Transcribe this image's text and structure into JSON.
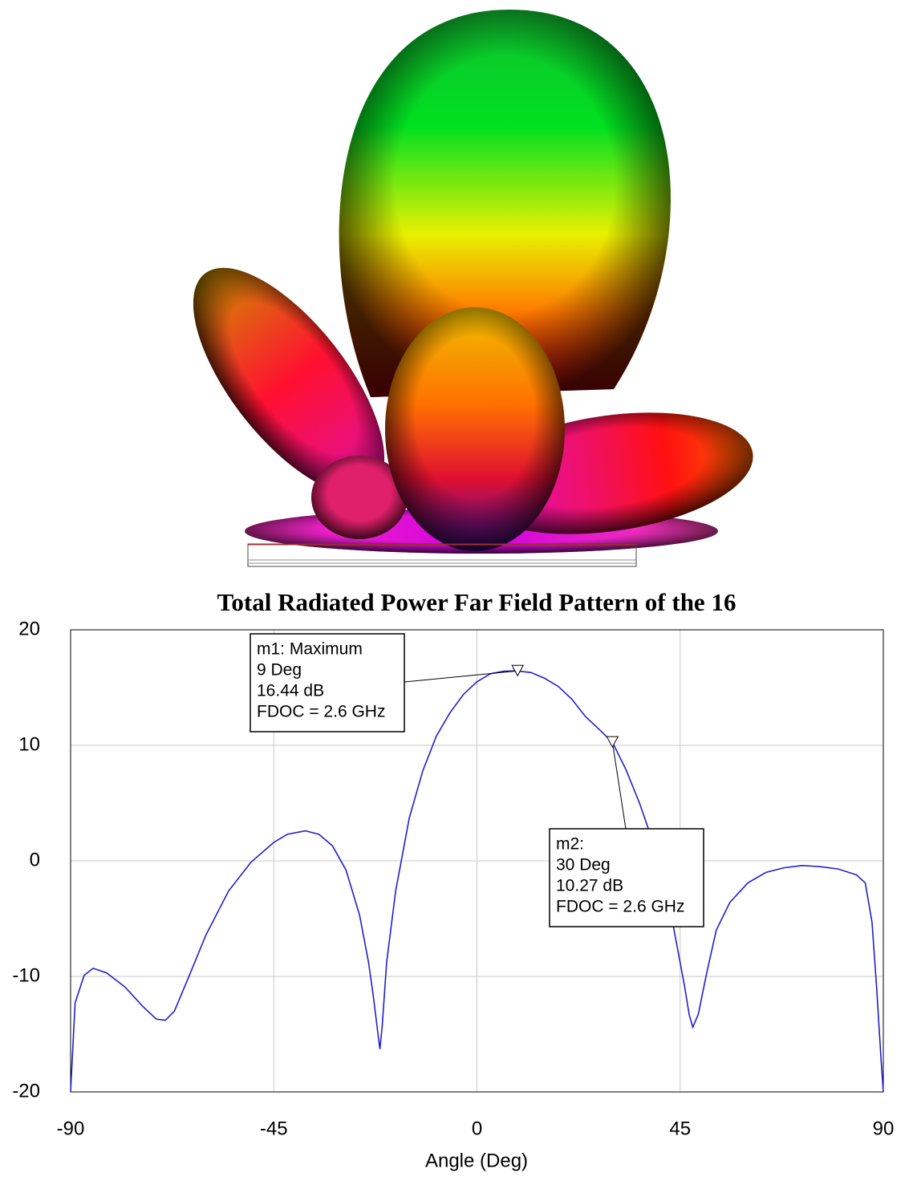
{
  "chart_data": {
    "type": "line",
    "title": "Total Radiated Power Far Field Pattern of the 16",
    "xlabel": "Angle (Deg)",
    "xlim": [
      -90,
      90
    ],
    "ylim": [
      -20,
      20
    ],
    "xticks": [
      -90,
      -45,
      0,
      45,
      90
    ],
    "yticks": [
      -20,
      -10,
      0,
      10,
      20
    ],
    "grid": true,
    "series": [
      {
        "color": "#1f1fd0",
        "x": [
          -90,
          -89,
          -87,
          -85,
          -82,
          -78,
          -74,
          -71,
          -69,
          -67,
          -64,
          -60,
          -55,
          -50,
          -45,
          -42,
          -38,
          -35,
          -32,
          -29,
          -26,
          -24,
          -23,
          -21.5,
          -21,
          -20,
          -18,
          -15,
          -12,
          -9,
          -6,
          -3,
          0,
          3,
          6,
          9,
          12,
          15,
          18,
          21,
          24,
          27,
          30,
          33,
          36,
          39,
          42,
          44,
          46,
          47,
          47.8,
          49,
          51,
          53,
          56,
          60,
          64,
          68,
          72,
          76,
          80,
          84,
          86,
          87.5,
          88.5,
          89.5,
          90
        ],
        "values": [
          -20,
          -12.3,
          -9.9,
          -9.3,
          -9.7,
          -10.9,
          -12.6,
          -13.7,
          -13.8,
          -13.0,
          -10.2,
          -6.4,
          -2.6,
          -0.1,
          1.6,
          2.3,
          2.6,
          2.3,
          1.3,
          -0.8,
          -4.7,
          -8.8,
          -11.6,
          -16.3,
          -14.4,
          -8.8,
          -2.6,
          3.7,
          7.8,
          10.8,
          12.8,
          14.4,
          15.5,
          16.2,
          16.42,
          16.44,
          16.3,
          15.8,
          15.1,
          14.0,
          12.5,
          11.4,
          10.27,
          7.9,
          5.0,
          1.6,
          -2.6,
          -6.7,
          -10.9,
          -13.3,
          -14.4,
          -13.3,
          -9.5,
          -6.0,
          -3.6,
          -1.9,
          -1.0,
          -0.6,
          -0.4,
          -0.5,
          -0.7,
          -1.2,
          -1.9,
          -5.3,
          -10.9,
          -17.2,
          -20
        ]
      }
    ],
    "markers": [
      {
        "x": 9,
        "y": 16.44,
        "lines": [
          "m1: Maximum",
          "9 Deg",
          "16.44 dB",
          "FDOC = 2.6 GHz"
        ]
      },
      {
        "x": 30,
        "y": 10.27,
        "lines": [
          "m2:",
          "30 Deg",
          "10.27 dB",
          "FDOC = 2.6 GHz"
        ]
      }
    ]
  }
}
